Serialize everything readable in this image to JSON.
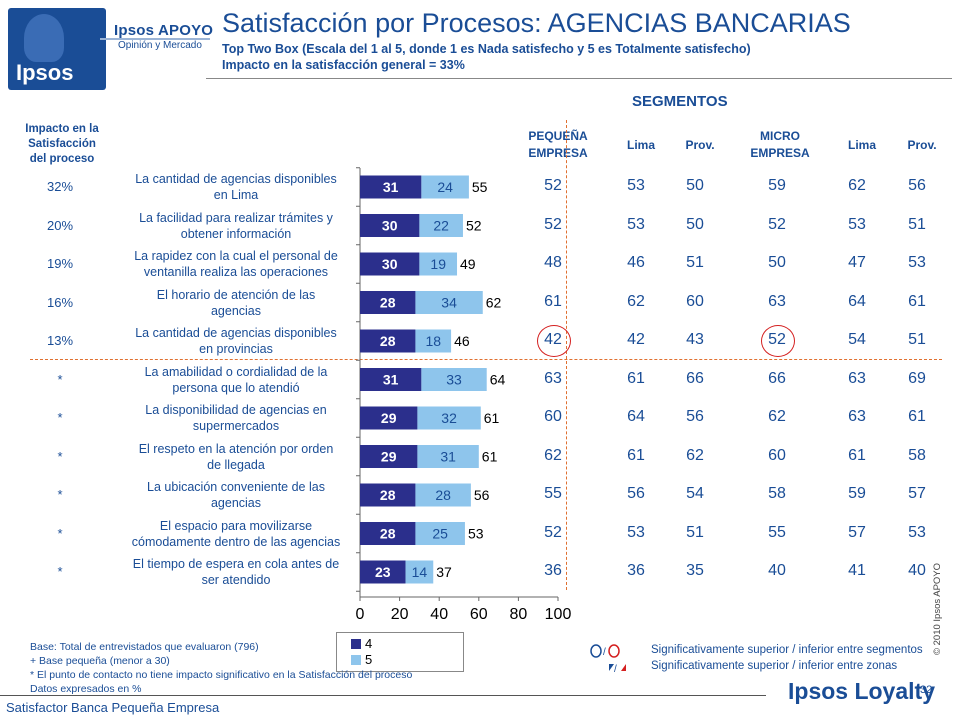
{
  "logo": {
    "brand": "Ipsos",
    "apoyo_title": "Ipsos APOYO",
    "apoyo_subtitle": "Opinión y Mercado"
  },
  "header": {
    "title": "Satisfacción por Procesos: AGENCIAS BANCARIAS",
    "subtitle": "Top Two Box  (Escala del 1 al 5, donde 1 es Nada satisfecho y 5 es Totalmente satisfecho)",
    "impact": "Impacto en la satisfacción general = 33%"
  },
  "segments_title": "SEGMENTOS",
  "impact_header": [
    "Impacto en la",
    "Satisfacción",
    "del proceso"
  ],
  "columns": [
    {
      "label1": "PEQUEÑA",
      "label2": "EMPRESA"
    },
    {
      "label1": "Lima",
      "label2": ""
    },
    {
      "label1": "Prov.",
      "label2": ""
    },
    {
      "label1": "MICRO",
      "label2": "EMPRESA"
    },
    {
      "label1": "Lima",
      "label2": ""
    },
    {
      "label1": "Prov.",
      "label2": ""
    }
  ],
  "chart_data": {
    "type": "bar",
    "orientation": "horizontal-stacked",
    "categories": [
      [
        "La cantidad de agencias disponibles",
        "en Lima"
      ],
      [
        "La facilidad para realizar trámites y",
        "obtener información"
      ],
      [
        "La rapidez con la cual el personal de",
        "ventanilla realiza las operaciones"
      ],
      [
        "El horario de atención de las",
        "agencias"
      ],
      [
        "La cantidad de agencias disponibles",
        "en provincias"
      ],
      [
        "La amabilidad o cordialidad de la",
        "persona que lo atendió"
      ],
      [
        "La disponibilidad de agencias en",
        "supermercados"
      ],
      [
        "El respeto en la atención por orden",
        "de llegada"
      ],
      [
        "La ubicación conveniente de las",
        "agencias"
      ],
      [
        "El espacio para movilizarse",
        "cómodamente dentro de las agencias"
      ],
      [
        "El tiempo de espera en cola antes de",
        "ser atendido"
      ]
    ],
    "series": [
      {
        "name": "4",
        "color": "#2b2f8c",
        "values": [
          31,
          30,
          30,
          28,
          28,
          31,
          29,
          29,
          28,
          28,
          23
        ]
      },
      {
        "name": "5",
        "color": "#8ec5ec",
        "values": [
          24,
          22,
          19,
          34,
          18,
          33,
          32,
          31,
          28,
          25,
          14
        ]
      }
    ],
    "totals": [
      55,
      52,
      49,
      62,
      46,
      64,
      61,
      61,
      56,
      53,
      37
    ],
    "xlim": [
      0,
      100
    ],
    "xticks": [
      "0",
      "20",
      "40",
      "60",
      "80",
      "100"
    ]
  },
  "impact_values": [
    "32%",
    "20%",
    "19%",
    "16%",
    "13%",
    "*",
    "*",
    "*",
    "*",
    "*",
    "*"
  ],
  "segment_values": [
    [
      "52",
      "53",
      "50",
      "59",
      "62",
      "56"
    ],
    [
      "52",
      "53",
      "50",
      "52",
      "53",
      "51"
    ],
    [
      "48",
      "46",
      "51",
      "50",
      "47",
      "53"
    ],
    [
      "61",
      "62",
      "60",
      "63",
      "64",
      "61"
    ],
    [
      "42",
      "42",
      "43",
      "52",
      "54",
      "51"
    ],
    [
      "63",
      "61",
      "66",
      "66",
      "63",
      "69"
    ],
    [
      "60",
      "64",
      "56",
      "62",
      "63",
      "61"
    ],
    [
      "62",
      "61",
      "62",
      "60",
      "61",
      "58"
    ],
    [
      "55",
      "56",
      "54",
      "58",
      "59",
      "57"
    ],
    [
      "52",
      "53",
      "51",
      "55",
      "57",
      "53"
    ],
    [
      "36",
      "36",
      "35",
      "40",
      "41",
      "40"
    ]
  ],
  "footnotes": {
    "base": "Base: Total de entrevistados que evaluaron (796)",
    "note1": "+ Base pequeña (menor a 30)",
    "note2": "* El punto de contacto no tiene impacto significativo en la Satisfacción del proceso",
    "note3": "Datos expresados en %"
  },
  "significance": {
    "circle_legend": "Significativamente superior / inferior entre segmentos",
    "square_legend": "Significativamente superior / inferior entre zonas",
    "circle_colors": [
      "#1a4d96",
      "#d42020"
    ],
    "square_colors": [
      "#1a4d96",
      "#d42020"
    ]
  },
  "copyright": "© 2010 Ipsos APOYO",
  "page_number": "32",
  "bottom_left": "Satisfactor Banca Pequeña Empresa",
  "bottom_brand": "Ipsos Loyalty"
}
